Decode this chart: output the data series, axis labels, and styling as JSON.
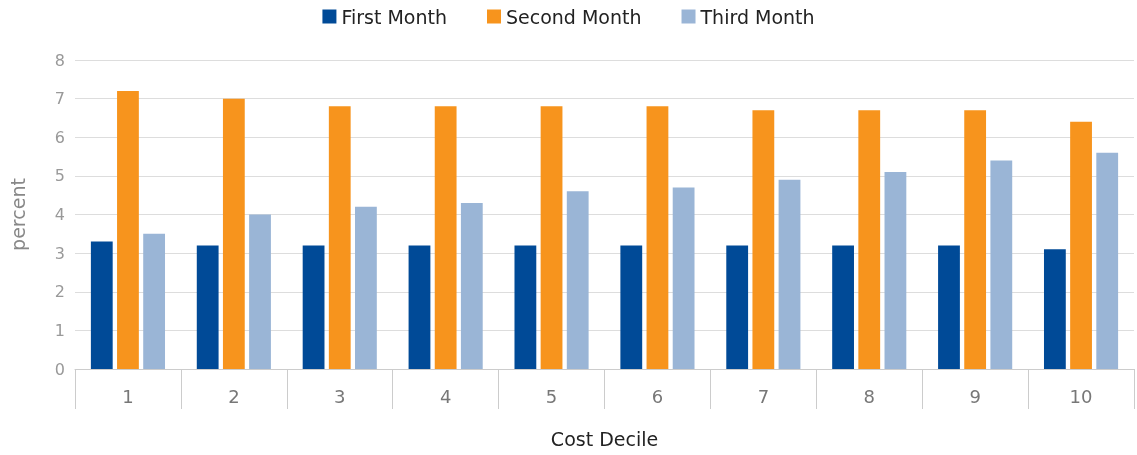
{
  "chart_data": {
    "type": "bar",
    "xlabel": "Cost Decile",
    "ylabel": "percent",
    "categories": [
      "1",
      "2",
      "3",
      "4",
      "5",
      "6",
      "7",
      "8",
      "9",
      "10"
    ],
    "series": [
      {
        "name": "First Month",
        "color": "#004a97",
        "values": [
          3.3,
          3.2,
          3.2,
          3.2,
          3.2,
          3.2,
          3.2,
          3.2,
          3.2,
          3.1
        ]
      },
      {
        "name": "Second Month",
        "color": "#f7941d",
        "values": [
          7.2,
          7.0,
          6.8,
          6.8,
          6.8,
          6.8,
          6.7,
          6.7,
          6.7,
          6.4
        ]
      },
      {
        "name": "Third Month",
        "color": "#9ab5d6",
        "values": [
          3.5,
          4.0,
          4.2,
          4.3,
          4.6,
          4.7,
          4.9,
          5.1,
          5.4,
          5.6
        ]
      }
    ],
    "ylim": [
      0,
      8
    ],
    "yticks": [
      0,
      1,
      2,
      3,
      4,
      5,
      6,
      7,
      8
    ],
    "grid": "y",
    "legend": "top"
  }
}
